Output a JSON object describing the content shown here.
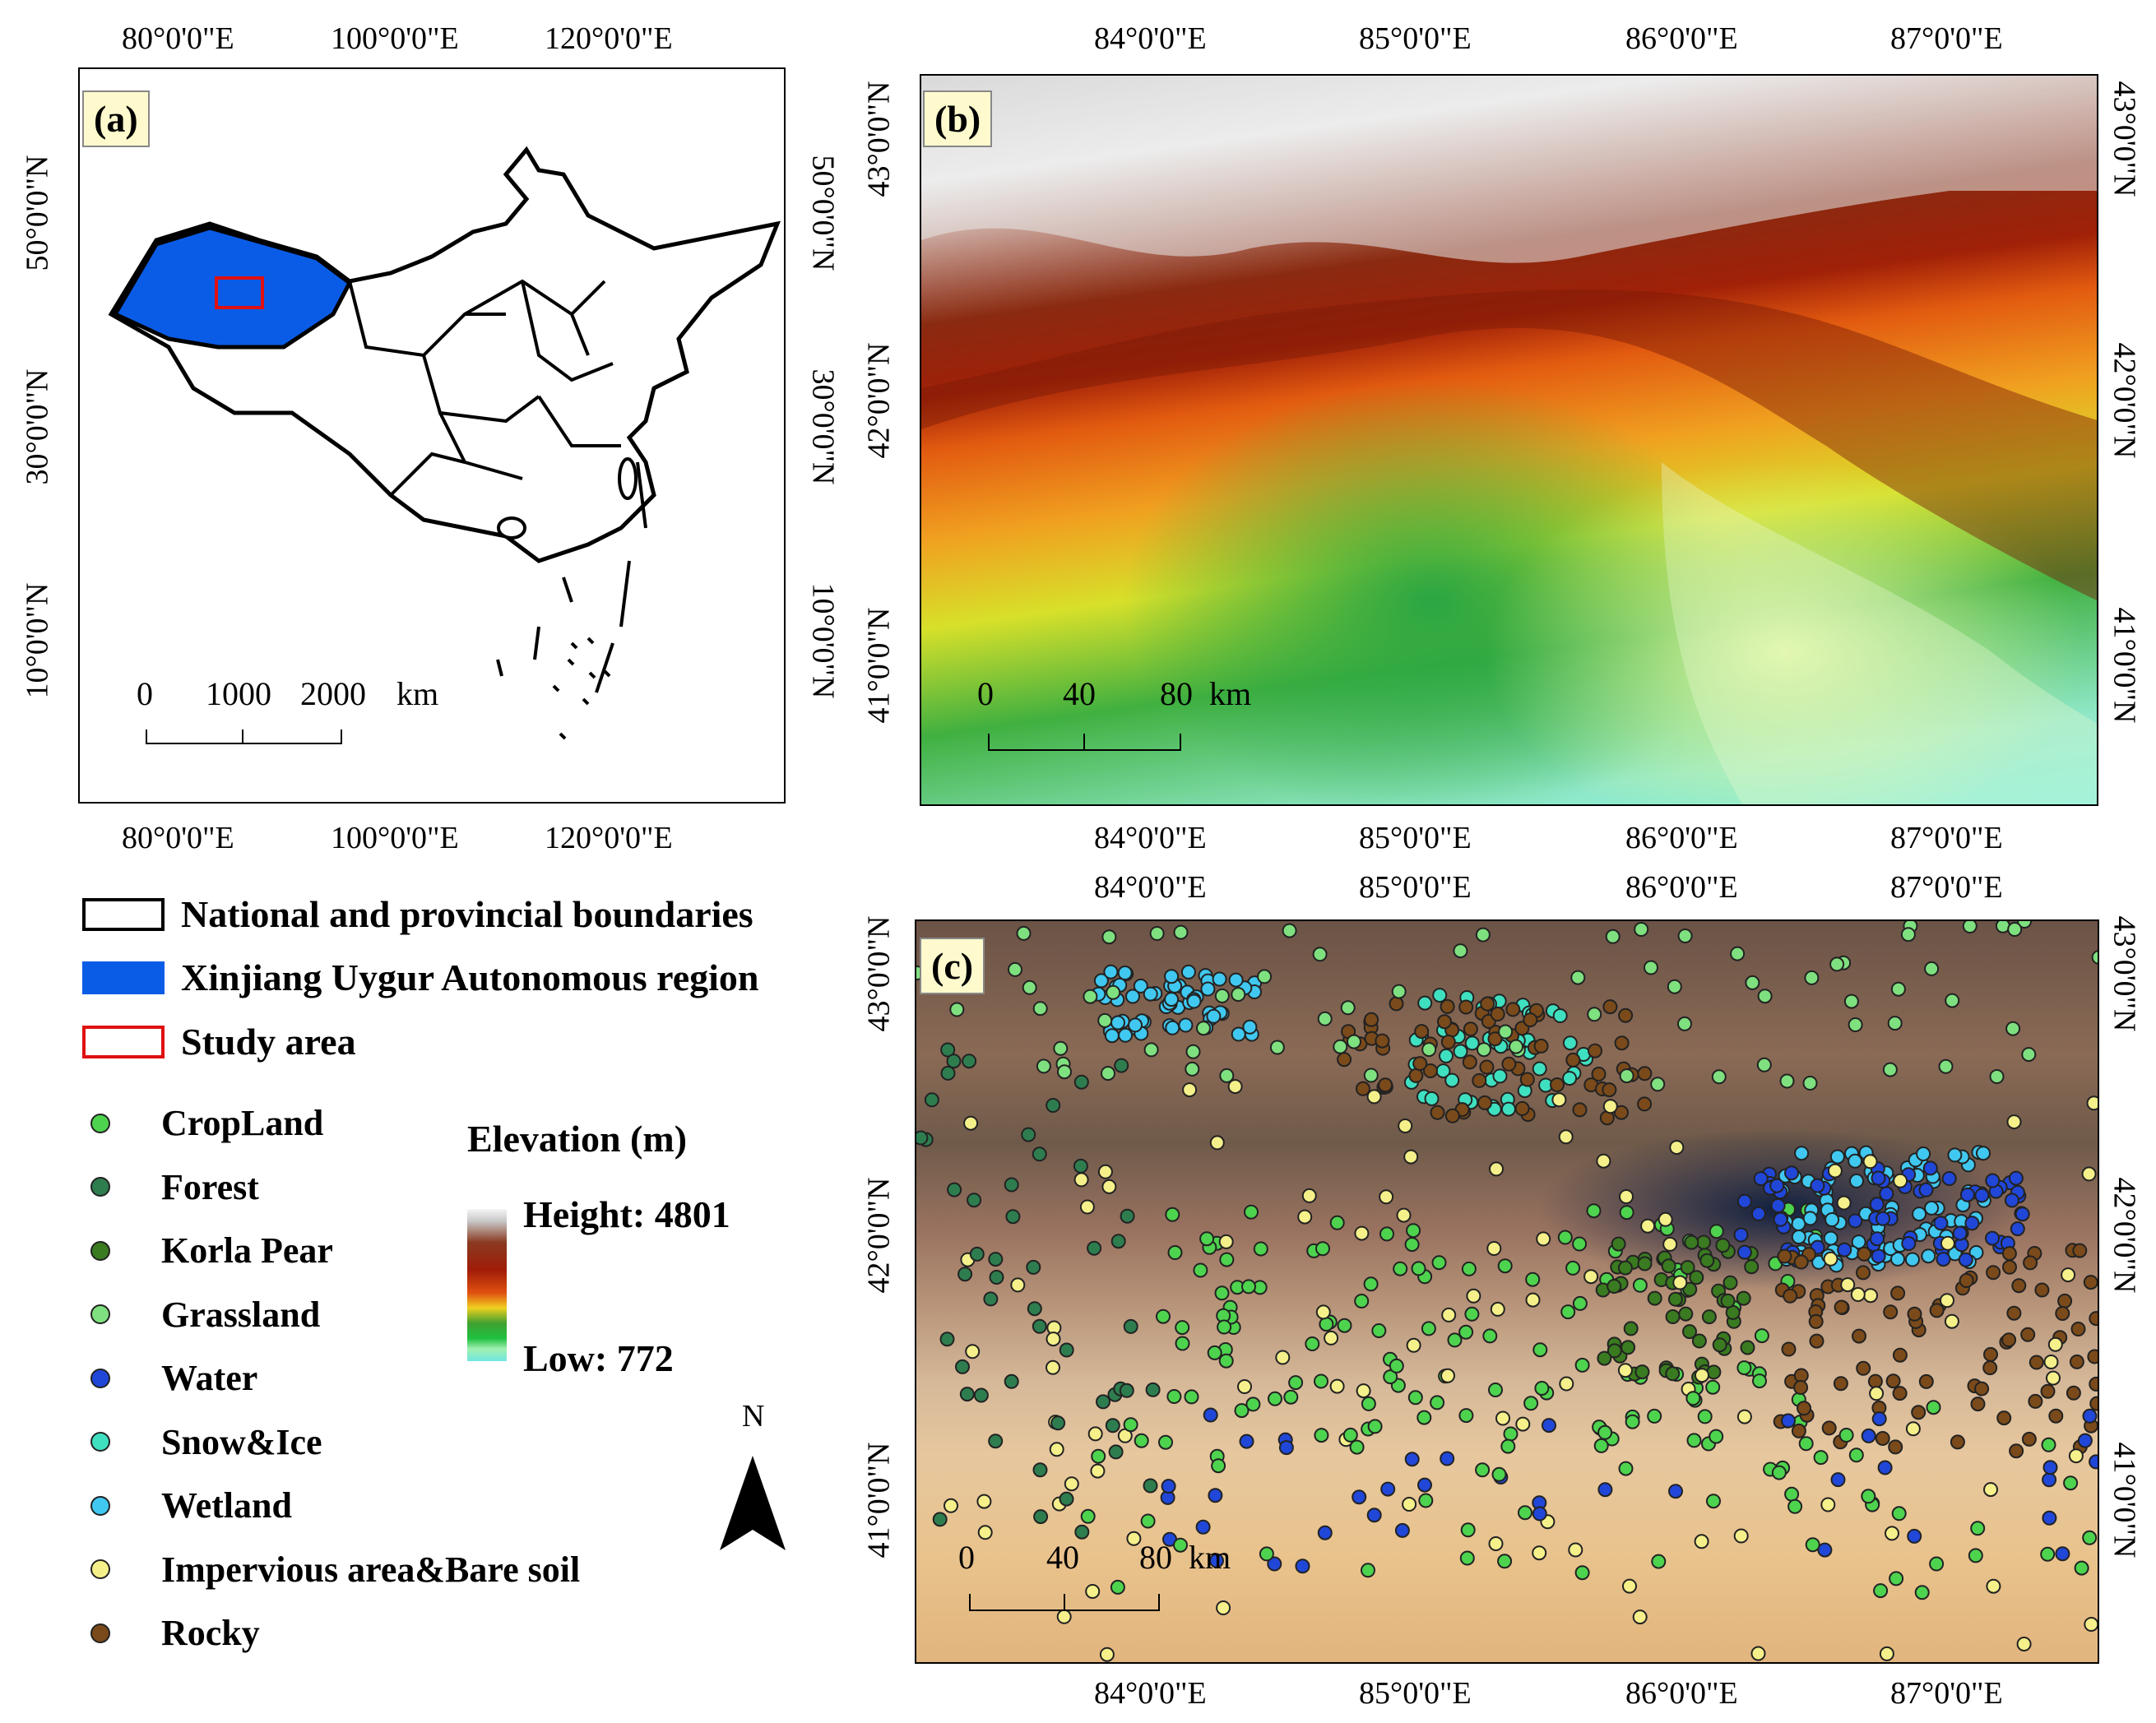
{
  "panel_a": {
    "label": "(a)",
    "top_lon_ticks": [
      "80°0'0\"E",
      "100°0'0\"E",
      "120°0'0\"E"
    ],
    "bottom_lon_ticks": [
      "80°0'0\"E",
      "100°0'0\"E",
      "120°0'0\"E"
    ],
    "left_lat_ticks": [
      "50°0'0\"N",
      "30°0'0\"N",
      "10°0'0\"N"
    ],
    "right_lat_ticks": [
      "50°0'0\"N",
      "30°0'0\"N",
      "10°0'0\"N"
    ],
    "scale_labels": [
      "0",
      "1000",
      "2000",
      "km"
    ]
  },
  "panel_b": {
    "label": "(b)",
    "top_lon_ticks": [
      "84°0'0\"E",
      "85°0'0\"E",
      "86°0'0\"E",
      "87°0'0\"E"
    ],
    "bottom_lon_ticks": [
      "84°0'0\"E",
      "85°0'0\"E",
      "86°0'0\"E",
      "87°0'0\"E"
    ],
    "left_lat_ticks": [
      "43°0'0\"N",
      "42°0'0\"N",
      "41°0'0\"N"
    ],
    "right_lat_ticks": [
      "43°0'0\"N",
      "42°0'0\"N",
      "41°0'0\"N"
    ],
    "scale_labels": [
      "0",
      "40",
      "80",
      "km"
    ]
  },
  "panel_c": {
    "label": "(c)",
    "top_lon_ticks": [
      "84°0'0\"E",
      "85°0'0\"E",
      "86°0'0\"E",
      "87°0'0\"E"
    ],
    "bottom_lon_ticks": [
      "84°0'0\"E",
      "85°0'0\"E",
      "86°0'0\"E",
      "87°0'0\"E"
    ],
    "left_lat_ticks": [
      "43°0'0\"N",
      "42°0'0\"N",
      "41°0'0\"N"
    ],
    "right_lat_ticks": [
      "43°0'0\"N",
      "42°0'0\"N",
      "41°0'0\"N"
    ],
    "scale_labels": [
      "0",
      "40",
      "80",
      "km"
    ]
  },
  "legend": {
    "boundaries": "National  and provincial boundaries",
    "xinjiang": "Xinjiang Uygur Autonomous region",
    "study_area": "Study area",
    "classes": [
      {
        "name": "CropLand",
        "color": "#4ed34e"
      },
      {
        "name": "Forest",
        "color": "#2e7d4f"
      },
      {
        "name": "Korla Pear",
        "color": "#3a7a20"
      },
      {
        "name": "Grassland",
        "color": "#7fe07f"
      },
      {
        "name": "Water",
        "color": "#2047d8"
      },
      {
        "name": "Snow&Ice",
        "color": "#3fe0c0"
      },
      {
        "name": "Wetland",
        "color": "#40c8f0"
      },
      {
        "name": "Impervious area&Bare soil",
        "color": "#f5f08a"
      },
      {
        "name": "Rocky",
        "color": "#7a4a1a"
      }
    ],
    "xinjiang_color": "#0a5ce6",
    "study_area_color": "#e01010",
    "elevation_title": "Elevation (m)",
    "elevation_high": "Height: 4801",
    "elevation_low": "Low: 772"
  },
  "north_arrow": "N"
}
